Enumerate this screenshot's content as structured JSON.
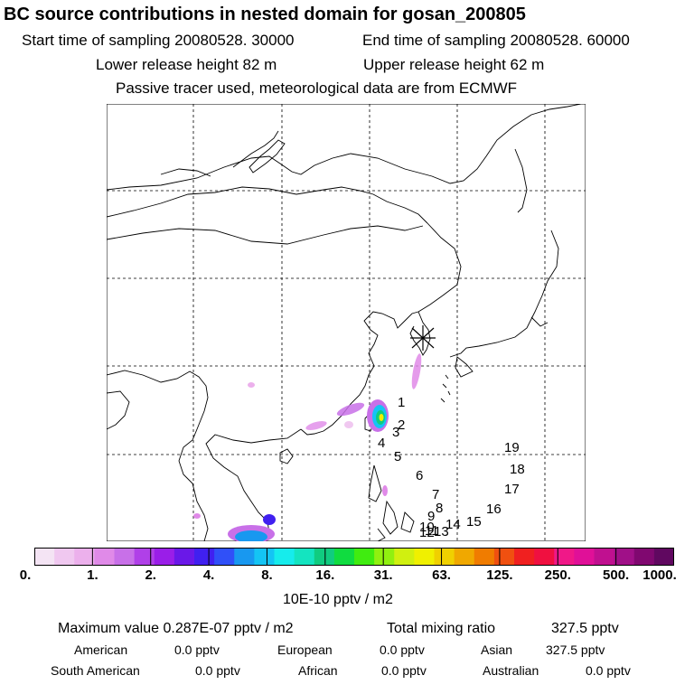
{
  "header": {
    "title": "BC  source contributions in nested domain for gosan_200805",
    "start_time": "Start time of sampling 20080528. 30000",
    "end_time": "End time of sampling 20080528. 60000",
    "lower_height": "Lower release height   82 m",
    "upper_height": "Upper release height   62 m",
    "tracer_note": "Passive tracer used, meteorological data are from ECMWF"
  },
  "trajectory_labels": [
    "1",
    "2",
    "3",
    "4",
    "5",
    "6",
    "7",
    "8",
    "9",
    "10",
    "11",
    "12",
    "13",
    "14",
    "15",
    "16",
    "17",
    "18",
    "19"
  ],
  "colorbar": {
    "colors": [
      "#f4e4f4",
      "#f0c8f0",
      "#ecb0ec",
      "#e08ae8",
      "#c870e8",
      "#b040e8",
      "#9a1ee8",
      "#6a18e8",
      "#4020f0",
      "#3050f8",
      "#1898f0",
      "#14c4f4",
      "#16ecec",
      "#14e4c0",
      "#10cc80",
      "#10dc40",
      "#40ec10",
      "#90f010",
      "#d0f010",
      "#f0f000",
      "#f0d000",
      "#f0a800",
      "#f07c00",
      "#f05010",
      "#f02020",
      "#f01040",
      "#f01888",
      "#e01098",
      "#c01090",
      "#a01088",
      "#800870",
      "#600860"
    ],
    "tick_labels": [
      "0.",
      "1.",
      "2.",
      "4.",
      "8.",
      "16.",
      "31.",
      "63.",
      "125.",
      "250.",
      "500.",
      "1000."
    ],
    "unit_label": "10E-10 pptv / m2"
  },
  "summary": {
    "max_value": "Maximum value  0.287E-07 pptv / m2",
    "total_mixing": "Total mixing ratio",
    "total_mixing_value": "327.5 pptv",
    "regions": [
      {
        "name": "American",
        "value": "0.0 pptv"
      },
      {
        "name": "European",
        "value": "0.0 pptv"
      },
      {
        "name": "Asian",
        "value": "327.5 pptv"
      },
      {
        "name": "South American",
        "value": "0.0 pptv"
      },
      {
        "name": "African",
        "value": "0.0 pptv"
      },
      {
        "name": "Australian",
        "value": "0.0 pptv"
      }
    ]
  }
}
